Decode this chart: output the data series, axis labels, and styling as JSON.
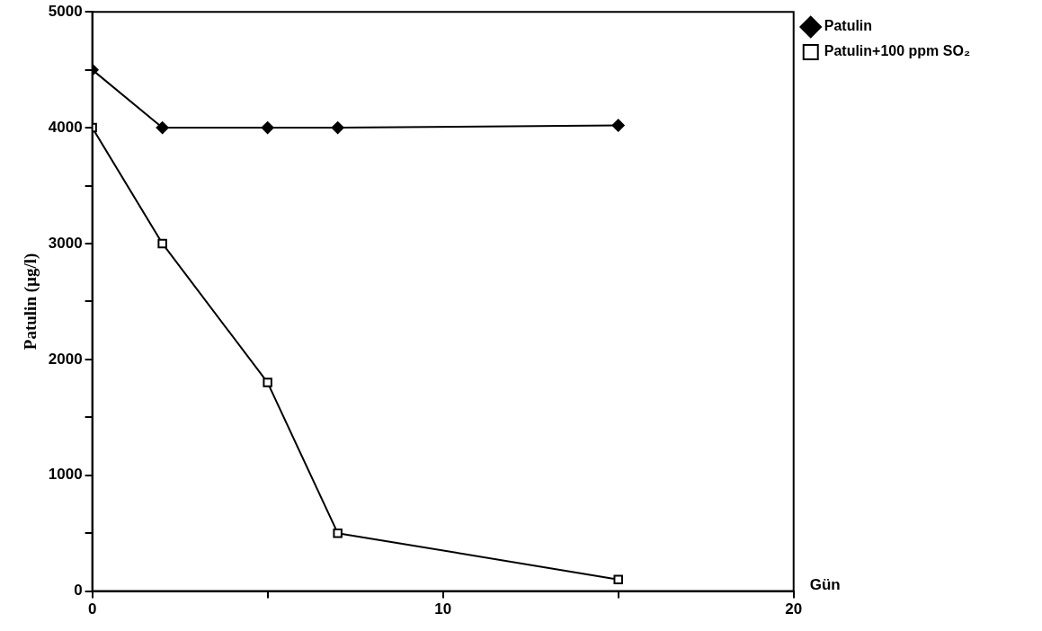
{
  "chart_data": {
    "type": "line",
    "ylabel": "Patulin (µg/l)",
    "xlabel": "Gün",
    "xlim": [
      0,
      20
    ],
    "xticks": [
      0,
      {
        "value": 5,
        "label": null
      },
      10,
      {
        "value": 15,
        "label": null
      },
      20
    ],
    "ylim": [
      0,
      5000
    ],
    "yticks": [
      0,
      {
        "value": 500,
        "label": null
      },
      1000,
      {
        "value": 1500,
        "label": null
      },
      2000,
      {
        "value": 2500,
        "label": null
      },
      3000,
      {
        "value": 3500,
        "label": null
      },
      4000,
      {
        "value": 4500,
        "label": null
      },
      5000
    ],
    "grid": false,
    "legend": "right",
    "line_style": "solid",
    "series": [
      {
        "name": "Patulin",
        "color": "#000000",
        "marker": "diamond",
        "x": [
          0,
          2,
          5,
          7,
          15
        ],
        "values": [
          4500,
          4000,
          4000,
          4000,
          4020
        ]
      },
      {
        "name": "Patulin+100 ppm SO₂",
        "color": "#000000",
        "marker": "square",
        "x": [
          0,
          2,
          5,
          7,
          15
        ],
        "values": [
          4000,
          3000,
          1800,
          500,
          100
        ]
      }
    ]
  }
}
